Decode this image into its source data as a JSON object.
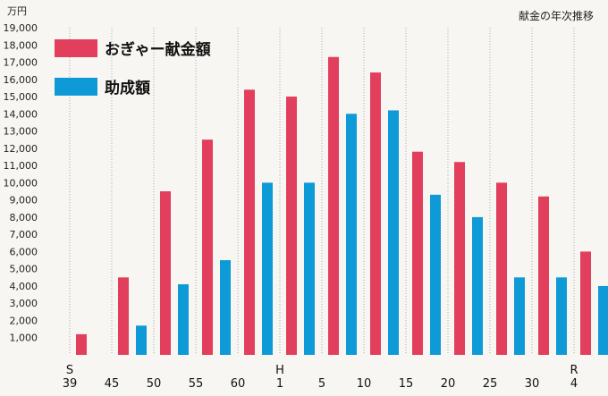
{
  "chart_data": {
    "type": "bar",
    "title": "献金の年次推移",
    "unit_label": "万円",
    "categories": [
      {
        "era": "S",
        "year": "39"
      },
      {
        "era": "",
        "year": "45"
      },
      {
        "era": "",
        "year": "50"
      },
      {
        "era": "",
        "year": "55"
      },
      {
        "era": "",
        "year": "60"
      },
      {
        "era": "H",
        "year": "1"
      },
      {
        "era": "",
        "year": "5"
      },
      {
        "era": "",
        "year": "10"
      },
      {
        "era": "",
        "year": "15"
      },
      {
        "era": "",
        "year": "20"
      },
      {
        "era": "",
        "year": "25"
      },
      {
        "era": "",
        "year": "30"
      },
      {
        "era": "R",
        "year": "4"
      }
    ],
    "series": [
      {
        "name": "おぎゃー献金額",
        "color": "#e23f5d",
        "values": [
          1200,
          4500,
          9500,
          12500,
          15400,
          15000,
          17300,
          16400,
          11800,
          11200,
          10000,
          9200,
          6000
        ]
      },
      {
        "name": "助成額",
        "color": "#0d9ad6",
        "values": [
          null,
          1700,
          4100,
          5500,
          10000,
          10000,
          14000,
          14200,
          9300,
          8000,
          4500,
          4500,
          4000
        ]
      }
    ],
    "ylim": [
      0,
      19000
    ],
    "yticks": [
      "1,000",
      "2,000",
      "3,000",
      "4,000",
      "5,000",
      "6,000",
      "7,000",
      "8,000",
      "9,000",
      "10,000",
      "11,000",
      "12,000",
      "13,000",
      "14,000",
      "15,000",
      "16,000",
      "17,000",
      "18,000",
      "19,000"
    ],
    "grid": "vertical dotted separators",
    "legend": "top-left"
  }
}
